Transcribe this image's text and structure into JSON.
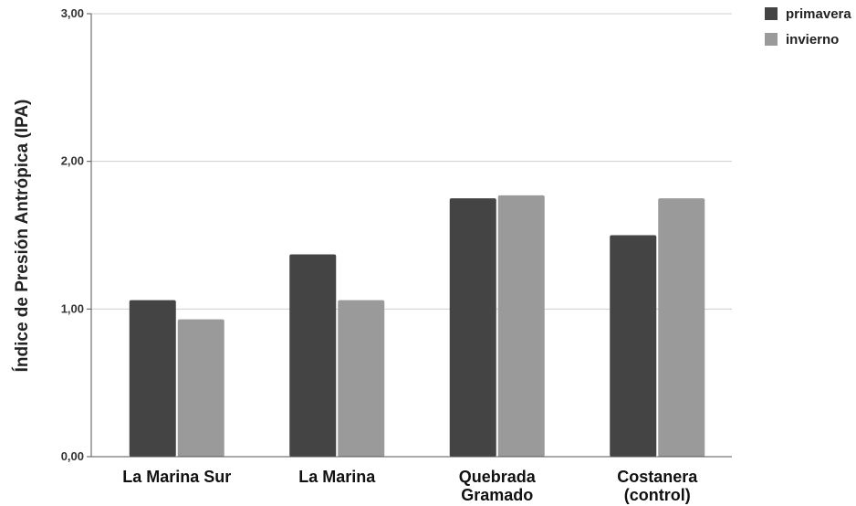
{
  "chart_data": {
    "type": "bar",
    "title": "",
    "xlabel": "",
    "ylabel": "Índice de Presión  Antrópica (IPA)",
    "ylim": [
      0,
      3
    ],
    "yticks": [
      "0,00",
      "1,00",
      "2,00",
      "3,00"
    ],
    "grid": true,
    "legend_position": "top-right",
    "categories": [
      [
        "La Marina Sur"
      ],
      [
        "La Marina"
      ],
      [
        "Quebrada",
        "Gramado"
      ],
      [
        "Costanera",
        "(control)"
      ]
    ],
    "series": [
      {
        "name": "primavera",
        "color": "#444444",
        "values": [
          1.06,
          1.37,
          1.75,
          1.5
        ]
      },
      {
        "name": "invierno",
        "color": "#9a9a9a",
        "values": [
          0.93,
          1.06,
          1.77,
          1.75
        ]
      }
    ]
  }
}
